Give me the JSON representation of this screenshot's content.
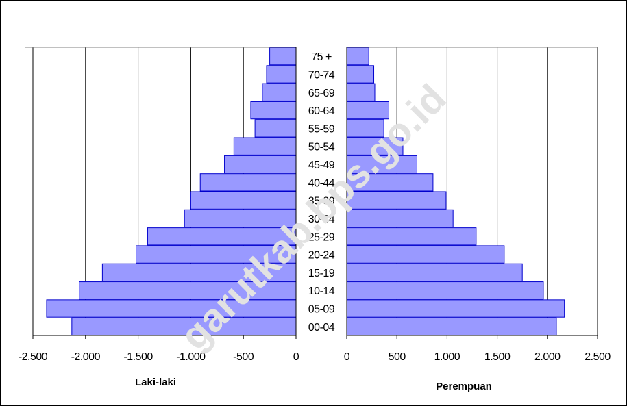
{
  "chart_data": {
    "type": "bar",
    "orientation": "horizontal",
    "categories": [
      "00-04",
      "05-09",
      "10-14",
      "15-19",
      "20-24",
      "25-29",
      "30-34",
      "35-39",
      "40-44",
      "45-49",
      "50-54",
      "55-59",
      "60-64",
      "65-69",
      "70-74",
      "75 +"
    ],
    "series": [
      {
        "name": "Laki-laki",
        "values": [
          -2130,
          -2370,
          -2060,
          -1840,
          -1520,
          -1410,
          -1060,
          -1000,
          -910,
          -680,
          -590,
          -390,
          -430,
          -320,
          -280,
          -250
        ]
      },
      {
        "name": "Perempuan",
        "values": [
          2090,
          2170,
          1960,
          1750,
          1570,
          1290,
          1060,
          990,
          860,
          700,
          560,
          370,
          420,
          280,
          270,
          220
        ]
      }
    ],
    "left_axis": {
      "label": "Laki-laki",
      "range": [
        -2500,
        0
      ],
      "ticks": [
        -2500,
        -2000,
        -1500,
        -1000,
        -500,
        0
      ],
      "tick_labels": [
        "-2.500",
        "-2.000",
        "-1.500",
        "-1.000",
        "-500",
        "0"
      ]
    },
    "right_axis": {
      "label": "Perempuan",
      "range": [
        0,
        2500
      ],
      "ticks": [
        0,
        500,
        1000,
        1500,
        2000,
        2500
      ],
      "tick_labels": [
        "0",
        "500",
        "1.000",
        "1.500",
        "2.000",
        "2.500"
      ]
    },
    "grid": true,
    "bar_color": "#9999ff",
    "bar_edge_color": "#0000cc",
    "watermark": "garutkab.bps.go.id"
  }
}
